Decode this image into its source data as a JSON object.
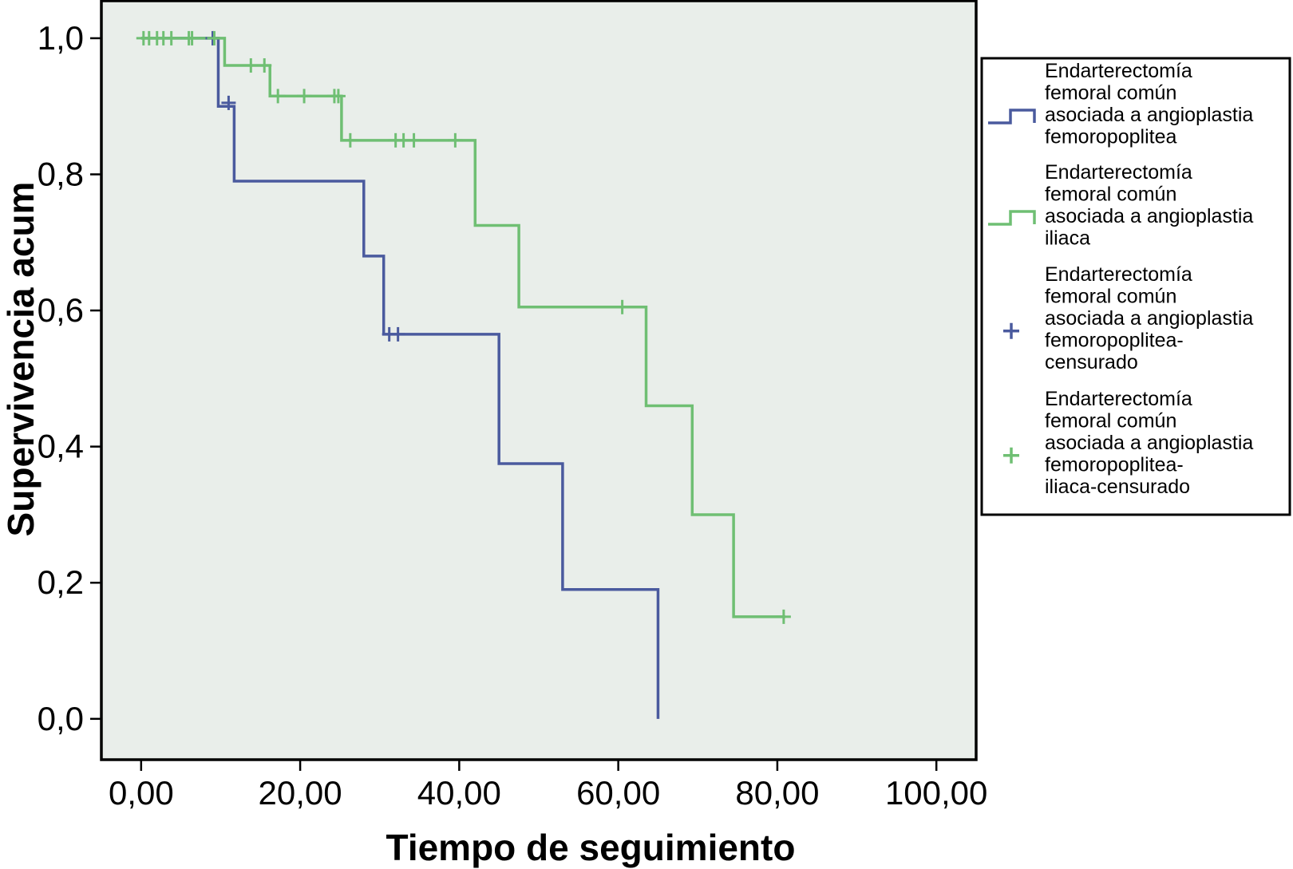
{
  "chart_data": {
    "type": "line",
    "subtype": "kaplan-meier-step",
    "title": "",
    "xlabel": "Tiempo de seguimiento",
    "ylabel": "Supervivencia acum",
    "xlim": [
      -5,
      105
    ],
    "ylim": [
      -0.06,
      1.055
    ],
    "x_ticks": [
      0,
      20,
      40,
      60,
      80,
      100
    ],
    "x_tick_labels": [
      "0,00",
      "20,00",
      "40,00",
      "60,00",
      "80,00",
      "100,00"
    ],
    "y_ticks": [
      0,
      0.2,
      0.4,
      0.6,
      0.8,
      1.0
    ],
    "y_tick_labels": [
      "0,0",
      "0,2",
      "0,4",
      "0,6",
      "0,8",
      "1,0"
    ],
    "grid": false,
    "plot_background": "#e9eeea",
    "legend_position": "right",
    "series": [
      {
        "name": "Endarterectomía femoral común asociada a angioplastia femoropoplitea",
        "color": "#4a5a9e",
        "steps": [
          [
            0,
            1.0
          ],
          [
            9.7,
            0.9
          ],
          [
            11.7,
            0.79
          ],
          [
            28,
            0.68
          ],
          [
            30.5,
            0.565
          ],
          [
            45,
            0.375
          ],
          [
            53,
            0.19
          ],
          [
            65,
            0.0
          ]
        ],
        "end_x": 65
      },
      {
        "name": "Endarterectomía femoral común asociada a angioplastia iliaca",
        "color": "#6fbf73",
        "steps": [
          [
            0,
            1.0
          ],
          [
            10.5,
            0.96
          ],
          [
            16.2,
            0.915
          ],
          [
            25.2,
            0.85
          ],
          [
            42,
            0.725
          ],
          [
            47.5,
            0.605
          ],
          [
            63.5,
            0.46
          ],
          [
            69.3,
            0.3
          ],
          [
            74.5,
            0.15
          ]
        ],
        "end_x": 81
      }
    ],
    "censored": [
      {
        "name": "Endarterectomía femoral común asociada a angioplastia femoropoplitea-censurado",
        "color": "#4a5a9e",
        "points": [
          [
            9,
            1.0
          ],
          [
            11,
            0.905
          ],
          [
            31.2,
            0.565
          ],
          [
            32.3,
            0.565
          ]
        ]
      },
      {
        "name": "Endarterectomía femoral común asociada a angioplastia femoropoplitea-iliaca-censurado",
        "color": "#6fbf73",
        "points": [
          [
            0.3,
            1.0
          ],
          [
            1,
            1.0
          ],
          [
            2,
            1.0
          ],
          [
            2.8,
            1.0
          ],
          [
            3.8,
            1.0
          ],
          [
            6,
            1.0
          ],
          [
            6.4,
            1.0
          ],
          [
            9.2,
            1.0
          ],
          [
            13.8,
            0.96
          ],
          [
            15.5,
            0.96
          ],
          [
            17.2,
            0.915
          ],
          [
            20.5,
            0.915
          ],
          [
            24.3,
            0.915
          ],
          [
            24.8,
            0.915
          ],
          [
            26.3,
            0.85
          ],
          [
            32,
            0.85
          ],
          [
            33,
            0.85
          ],
          [
            34.3,
            0.85
          ],
          [
            39.5,
            0.85
          ],
          [
            60.5,
            0.605
          ],
          [
            80.8,
            0.15
          ]
        ]
      }
    ],
    "legend": [
      {
        "lines": [
          "Endarterectomía",
          "femoral común",
          "asociada a angioplastia",
          "femoropoplitea"
        ],
        "symbol": "step",
        "color": "#4a5a9e"
      },
      {
        "lines": [
          "Endarterectomía",
          "femoral común",
          "asociada a angioplastia",
          "iliaca"
        ],
        "symbol": "step",
        "color": "#6fbf73"
      },
      {
        "lines": [
          "Endarterectomía",
          "femoral común",
          "asociada a angioplastia",
          "femoropoplitea-",
          "censurado"
        ],
        "symbol": "plus",
        "color": "#4a5a9e"
      },
      {
        "lines": [
          "Endarterectomía",
          "femoral común",
          "asociada a angioplastia",
          "femoropoplitea-",
          "iliaca-censurado"
        ],
        "symbol": "plus",
        "color": "#6fbf73"
      }
    ]
  }
}
